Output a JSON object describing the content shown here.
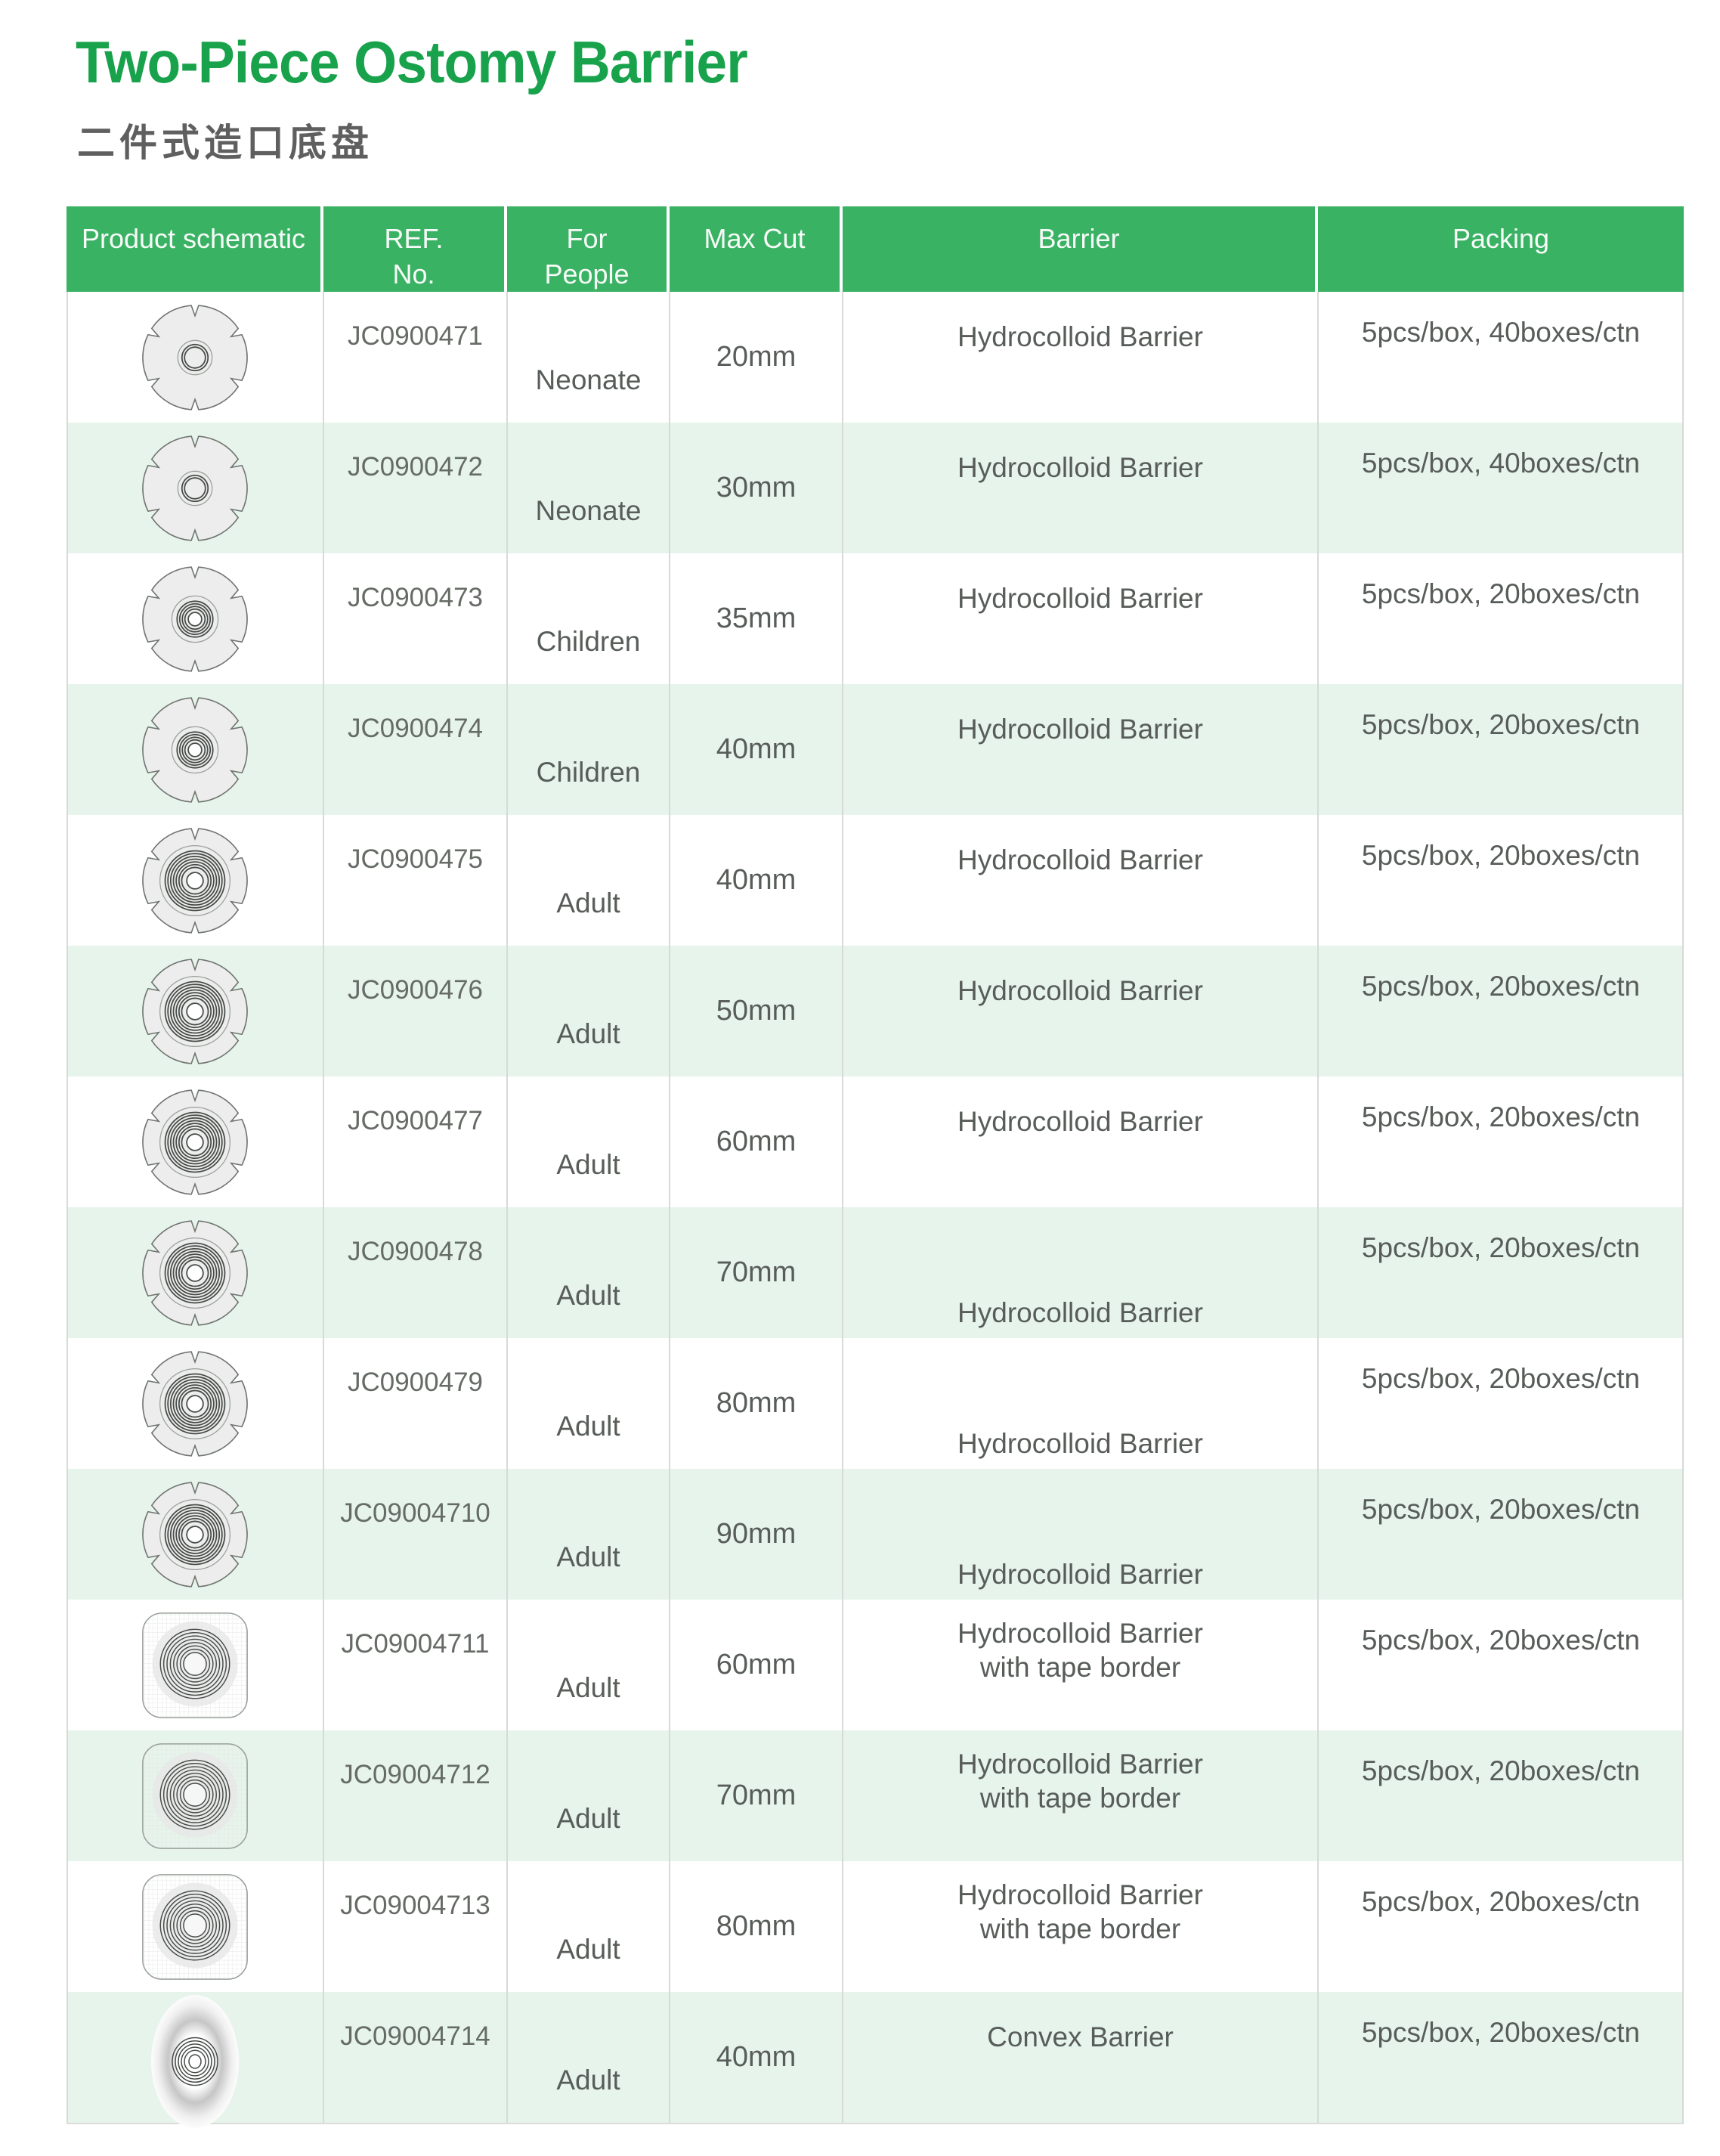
{
  "page": {
    "title": "Two-Piece Ostomy Barrier",
    "subtitle": "二件式造口底盘"
  },
  "colors": {
    "title_green": "#18a24b",
    "header_green": "#3ab264",
    "row_alt_mint": "#e6f4eb",
    "body_text": "#585d59",
    "divider": "#d7dad7"
  },
  "table": {
    "headers": [
      {
        "line1": "Product schematic"
      },
      {
        "line1": "REF.",
        "line2": "No."
      },
      {
        "line1": "For",
        "line2": "People"
      },
      {
        "line1": "Max Cut"
      },
      {
        "line1": "Barrier"
      },
      {
        "line1": "Packing"
      }
    ],
    "rows": [
      {
        "ref": "JC0900471",
        "people": "Neonate",
        "cut": "20mm",
        "barrier": "Hydrocolloid Barrier",
        "packing": "5pcs/box, 40boxes/ctn",
        "icon": "flower-neonate"
      },
      {
        "ref": "JC0900472",
        "people": "Neonate",
        "cut": "30mm",
        "barrier": "Hydrocolloid Barrier",
        "packing": "5pcs/box, 40boxes/ctn",
        "icon": "flower-neonate"
      },
      {
        "ref": "JC0900473",
        "people": "Children",
        "cut": "35mm",
        "barrier": "Hydrocolloid Barrier",
        "packing": "5pcs/box, 20boxes/ctn",
        "icon": "flower-children"
      },
      {
        "ref": "JC0900474",
        "people": "Children",
        "cut": "40mm",
        "barrier": "Hydrocolloid Barrier",
        "packing": "5pcs/box, 20boxes/ctn",
        "icon": "flower-children"
      },
      {
        "ref": "JC0900475",
        "people": "Adult",
        "cut": "40mm",
        "barrier": "Hydrocolloid Barrier",
        "packing": "5pcs/box, 20boxes/ctn",
        "icon": "flower-adult"
      },
      {
        "ref": "JC0900476",
        "people": "Adult",
        "cut": "50mm",
        "barrier": "Hydrocolloid Barrier",
        "packing": "5pcs/box, 20boxes/ctn",
        "icon": "flower-adult"
      },
      {
        "ref": "JC0900477",
        "people": "Adult",
        "cut": "60mm",
        "barrier": "Hydrocolloid Barrier",
        "packing": "5pcs/box, 20boxes/ctn",
        "icon": "flower-adult"
      },
      {
        "ref": "JC0900478",
        "people": "Adult",
        "cut": "70mm",
        "barrier": "Hydrocolloid Barrier",
        "packing": "5pcs/box, 20boxes/ctn",
        "icon": "flower-adult"
      },
      {
        "ref": "JC0900479",
        "people": "Adult",
        "cut": "80mm",
        "barrier": "Hydrocolloid Barrier",
        "packing": "5pcs/box, 20boxes/ctn",
        "icon": "flower-adult"
      },
      {
        "ref": "JC09004710",
        "people": "Adult",
        "cut": "90mm",
        "barrier": "Hydrocolloid Barrier",
        "packing": "5pcs/box, 20boxes/ctn",
        "icon": "flower-adult"
      },
      {
        "ref": "JC09004711",
        "people": "Adult",
        "cut": "60mm",
        "barrier": "Hydrocolloid Barrier with tape border",
        "packing": "5pcs/box, 20boxes/ctn",
        "icon": "square-tape"
      },
      {
        "ref": "JC09004712",
        "people": "Adult",
        "cut": "70mm",
        "barrier": "Hydrocolloid Barrier with tape border",
        "packing": "5pcs/box, 20boxes/ctn",
        "icon": "square-tape"
      },
      {
        "ref": "JC09004713",
        "people": "Adult",
        "cut": "80mm",
        "barrier": "Hydrocolloid Barrier with tape border",
        "packing": "5pcs/box, 20boxes/ctn",
        "icon": "square-tape"
      },
      {
        "ref": "JC09004714",
        "people": "Adult",
        "cut": "40mm",
        "barrier": "Convex Barrier",
        "packing": "5pcs/box, 20boxes/ctn",
        "icon": "convex"
      }
    ]
  }
}
